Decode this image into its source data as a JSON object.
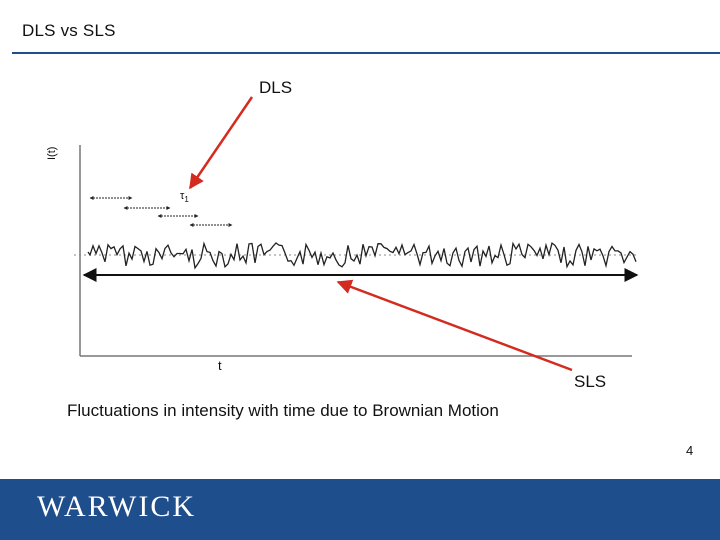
{
  "slide": {
    "title": "DLS vs SLS",
    "label_dls": "DLS",
    "label_sls": "SLS",
    "caption": "Fluctuations in intensity with time due to Brownian Motion",
    "page_number": "4"
  },
  "figure": {
    "y_axis_label": "I(t)",
    "x_axis_label": "t",
    "tau_label": "τ",
    "tau_subscript": "1"
  },
  "footer": {
    "logo_text": "WARWICK"
  },
  "colors": {
    "accent_rule": "#1f4e8c",
    "footer_bg": "#1f4e8c",
    "arrow_red": "#d42b20"
  }
}
